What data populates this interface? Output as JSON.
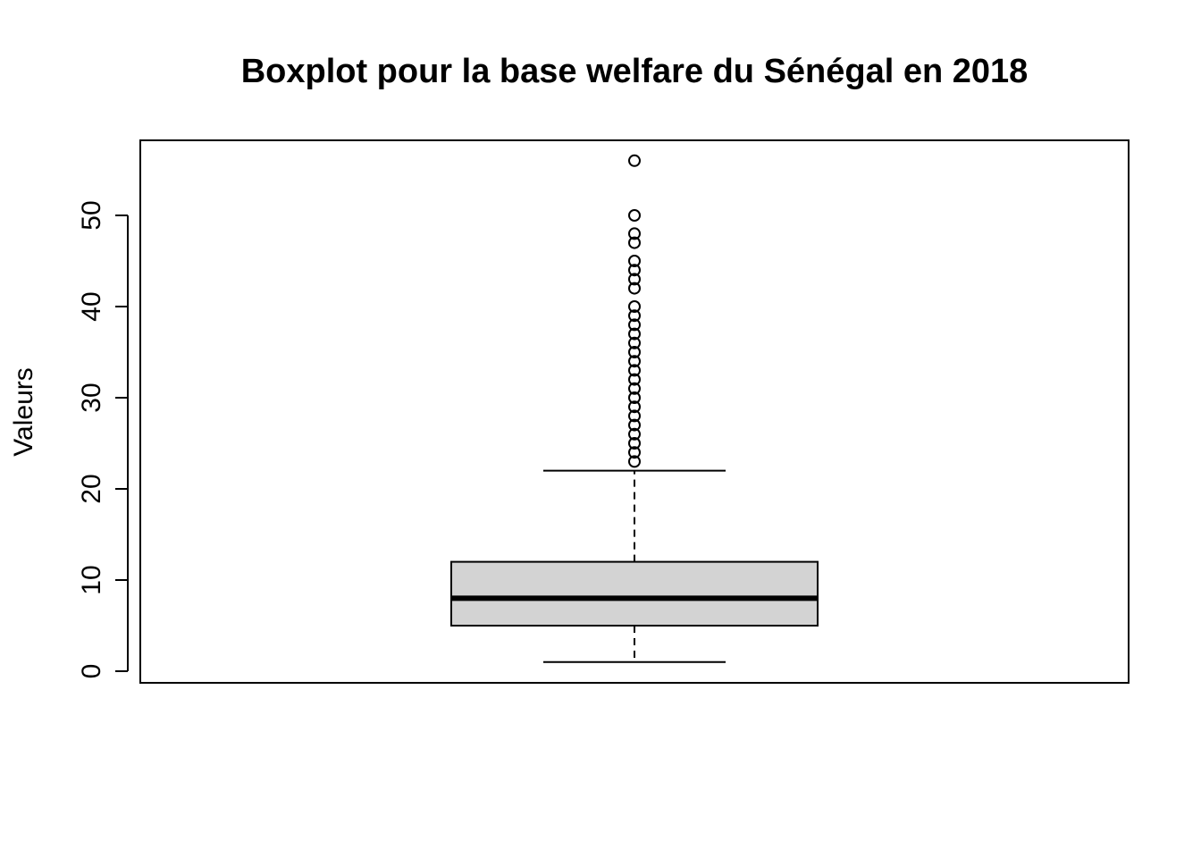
{
  "chart_data": {
    "type": "boxplot",
    "title": "Boxplot pour la base welfare du Sénégal en 2018",
    "xlabel": "",
    "ylabel": "Valeurs",
    "ylim": [
      0,
      56
    ],
    "yticks": [
      "0",
      "10",
      "20",
      "30",
      "40",
      "50"
    ],
    "grid": false,
    "legend": "none",
    "series": [
      {
        "stats": {
          "min": 1,
          "q1": 5,
          "median": 8,
          "q3": 12,
          "max": 22
        },
        "outliers": [
          23,
          24,
          25,
          26,
          27,
          28,
          29,
          30,
          31,
          32,
          33,
          34,
          35,
          36,
          37,
          38,
          39,
          40,
          42,
          43,
          44,
          45,
          47,
          48,
          50,
          56
        ]
      }
    ],
    "colors": {
      "box_fill": "#d3d3d3",
      "stroke": "#000000"
    }
  }
}
